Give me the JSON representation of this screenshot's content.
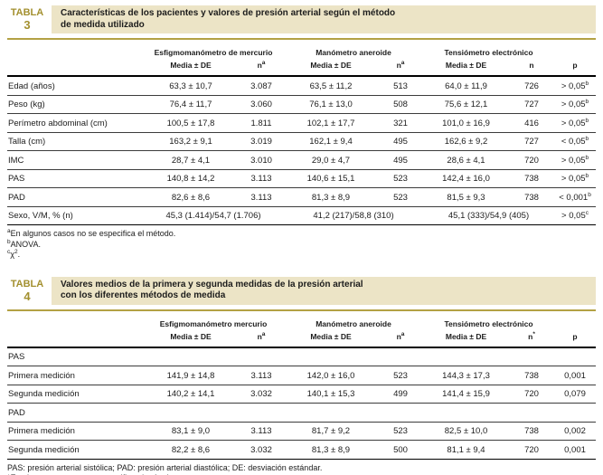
{
  "colors": {
    "badge_gold_text": "#a3902f",
    "title_cream_bg": "#ece4c6",
    "gold_rule": "#b3a144",
    "table_line": "#3c3c3c"
  },
  "tables": [
    {
      "badge_label": "TABLA",
      "badge_number": "3",
      "title_lines": [
        "Características de los pacientes y valores de presión arterial según el método",
        "de medida utilizado"
      ],
      "p_header": "p",
      "col_groups": [
        {
          "label": "Esfigmomanómetro de mercurio",
          "cols": [
            {
              "text": "Media ± DE"
            },
            {
              "text": "n",
              "sup": "a"
            }
          ]
        },
        {
          "label": "Manómetro aneroide",
          "cols": [
            {
              "text": "Media ± DE"
            },
            {
              "text": "n",
              "sup": "a"
            }
          ]
        },
        {
          "label": "Tensiómetro electrónico",
          "cols": [
            {
              "text": "Media ± DE"
            },
            {
              "text": "n"
            }
          ]
        }
      ],
      "rows": [
        {
          "label": "Edad (años)",
          "cells": [
            "63,3 ± 10,7",
            "3.087",
            "63,5 ± 11,2",
            "513",
            "64,0 ± 11,9",
            "726"
          ],
          "p": {
            "text": "> 0,05",
            "sup": "b"
          }
        },
        {
          "label": "Peso (kg)",
          "cells": [
            "76,4 ± 11,7",
            "3.060",
            "76,1 ± 13,0",
            "508",
            "75,6 ± 12,1",
            "727"
          ],
          "p": {
            "text": "> 0,05",
            "sup": "b"
          }
        },
        {
          "label": "Perímetro abdominal (cm)",
          "cells": [
            "100,5 ± 17,8",
            "1.811",
            "102,1 ± 17,7",
            "321",
            "101,0 ± 16,9",
            "416"
          ],
          "p": {
            "text": "> 0,05",
            "sup": "b"
          }
        },
        {
          "label": "Talla (cm)",
          "cells": [
            "163,2 ± 9,1",
            "3.019",
            "162,1 ± 9,4",
            "495",
            "162,6 ± 9,2",
            "727"
          ],
          "p": {
            "text": "< 0,05",
            "sup": "b"
          }
        },
        {
          "label": "IMC",
          "cells": [
            "28,7 ± 4,1",
            "3.010",
            "29,0 ± 4,7",
            "495",
            "28,6 ± 4,1",
            "720"
          ],
          "p": {
            "text": "> 0,05",
            "sup": "b"
          }
        },
        {
          "label": "PAS",
          "cells": [
            "140,8 ± 14,2",
            "3.113",
            "140,6 ± 15,1",
            "523",
            "142,4 ± 16,0",
            "738"
          ],
          "p": {
            "text": "> 0,05",
            "sup": "b"
          }
        },
        {
          "label": "PAD",
          "cells": [
            "82,6 ± 8,6",
            "3.113",
            "81,3 ± 8,9",
            "523",
            "81,5 ± 9,3",
            "738"
          ],
          "p": {
            "text": "< 0,001",
            "sup": "b"
          }
        },
        {
          "label": "Sexo, V/M, % (n)",
          "span_cells": [
            "45,3 (1.414)/54,7 (1.706)",
            "41,2 (217)/58,8 (310)",
            "45,1 (333)/54,9 (405)"
          ],
          "p": {
            "text": "> 0,05",
            "sup": "c"
          }
        }
      ],
      "footnotes": [
        [
          {
            "t": "a",
            "sup": true
          },
          {
            "t": "En algunos casos no se especifica el método."
          }
        ],
        [
          {
            "t": "b",
            "sup": true
          },
          {
            "t": "ANOVA."
          }
        ],
        [
          {
            "t": "c",
            "sup": true
          },
          {
            "t": "χ"
          },
          {
            "t": "2",
            "sup": true
          },
          {
            "t": "."
          }
        ]
      ]
    },
    {
      "badge_label": "TABLA",
      "badge_number": "4",
      "title_lines": [
        "Valores medios de la primera y segunda medidas de la presión arterial",
        "con los diferentes métodos de medida"
      ],
      "p_header": "p",
      "col_groups": [
        {
          "label": "Esfigmomanómetro mercurio",
          "cols": [
            {
              "text": "Media ± DE"
            },
            {
              "text": "n",
              "sup": "a"
            }
          ]
        },
        {
          "label": "Manómetro aneroide",
          "cols": [
            {
              "text": "Media ± DE"
            },
            {
              "text": "n",
              "sup": "a"
            }
          ]
        },
        {
          "label": "Tensiómetro electrónico",
          "cols": [
            {
              "text": "Media ± DE"
            },
            {
              "text": "n",
              "sup": "*"
            }
          ]
        }
      ],
      "rows": [
        {
          "section": "PAS"
        },
        {
          "label": "Primera medición",
          "cells": [
            "141,9 ± 14,8",
            "3.113",
            "142,0 ± 16,0",
            "523",
            "144,3 ± 17,3",
            "738"
          ],
          "p": {
            "text": "0,001"
          }
        },
        {
          "label": "Segunda medición",
          "cells": [
            "140,2 ± 14,1",
            "3.032",
            "140,1 ± 15,3",
            "499",
            "141,4 ± 15,9",
            "720"
          ],
          "p": {
            "text": "0,079"
          }
        },
        {
          "section": "PAD"
        },
        {
          "label": "Primera medición",
          "cells": [
            "83,1 ± 9,0",
            "3.113",
            "81,7 ± 9,2",
            "523",
            "82,5 ± 10,0",
            "738"
          ],
          "p": {
            "text": "0,002"
          }
        },
        {
          "label": "Segunda medición",
          "cells": [
            "82,2 ± 8,6",
            "3.032",
            "81,3 ± 8,9",
            "500",
            "81,1 ± 9,4",
            "720"
          ],
          "p": {
            "text": "0,001"
          }
        }
      ],
      "footnotes": [
        [
          {
            "t": "PAS: presión arterial sistólica; PAD: presión arterial diastólica; DE: desviación estándar."
          }
        ],
        [
          {
            "t": "*En algunos casos no se especifica el método."
          }
        ]
      ]
    }
  ]
}
